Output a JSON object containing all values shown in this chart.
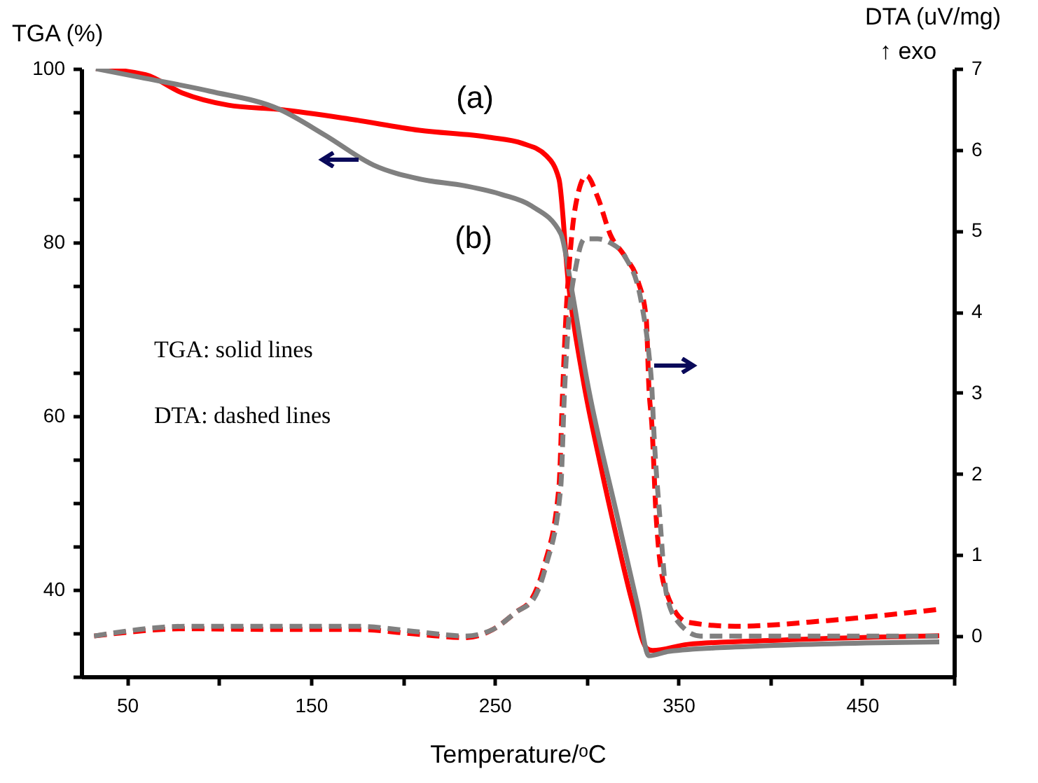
{
  "chart_data": {
    "type": "line",
    "xlabel": "Temperature/ᵒC",
    "ylabel": "TGA (%)",
    "y2label": "DTA (uV/mg)",
    "xlim": [
      25,
      500
    ],
    "xticks": [
      50,
      {
        "value": 100,
        "label": null
      },
      150,
      {
        "value": 200,
        "label": null
      },
      250,
      {
        "value": 300,
        "label": null
      },
      350,
      {
        "value": 400,
        "label": null
      },
      450,
      {
        "value": 500,
        "label": null
      }
    ],
    "ylim": [
      30,
      100
    ],
    "yticks": [
      {
        "value": 30,
        "label": null
      },
      {
        "value": 35,
        "label": null
      },
      40,
      {
        "value": 45,
        "label": null
      },
      {
        "value": 50,
        "label": null
      },
      {
        "value": 55,
        "label": null
      },
      60,
      {
        "value": 65,
        "label": null
      },
      {
        "value": 70,
        "label": null
      },
      {
        "value": 75,
        "label": null
      },
      80,
      {
        "value": 85,
        "label": null
      },
      {
        "value": 90,
        "label": null
      },
      {
        "value": 95,
        "label": null
      },
      100
    ],
    "y2lim": [
      -0.5,
      7
    ],
    "y2ticks": [
      0,
      1,
      2,
      3,
      4,
      5,
      6,
      7
    ],
    "grid": false,
    "annotations": [
      "↑ exo",
      "TGA: solid lines",
      "DTA: dashed lines",
      "(a)",
      "(b)"
    ],
    "series": [
      {
        "color": "#ff0000",
        "line_style": "solid",
        "x": [
          33,
          60,
          80,
          105,
          133,
          171,
          209,
          247,
          265,
          278,
          285,
          290,
          298,
          308,
          317,
          325,
          333,
          336,
          355,
          406,
          492
        ],
        "values": [
          100,
          99.3,
          97.2,
          95.8,
          95.3,
          94.2,
          92.9,
          92.1,
          91.4,
          90,
          87.3,
          75.6,
          64.4,
          54,
          45.5,
          38.5,
          33.2,
          33,
          33.7,
          34.2,
          34.7
        ]
      },
      {
        "color": "#808080",
        "line_style": "solid",
        "x": [
          33,
          57,
          95,
          133,
          158,
          184,
          209,
          234,
          254,
          270,
          286,
          292,
          300,
          317,
          328,
          334,
          345,
          381,
          492
        ],
        "values": [
          100,
          99,
          97.4,
          95.3,
          92.3,
          88.9,
          87.3,
          86.5,
          85.5,
          84.2,
          81,
          74.5,
          64.4,
          48.2,
          38,
          32.4,
          32.9,
          33.4,
          34
        ]
      },
      {
        "color": "#ff0000",
        "line_style": "dashed",
        "axis": "y2",
        "x": [
          32,
          82,
          133,
          175,
          209,
          234,
          249,
          262,
          270,
          277,
          285,
          287,
          288.5,
          292,
          295,
          300,
          306,
          313,
          321,
          328,
          332.5,
          334,
          335.6,
          338,
          343,
          355,
          381,
          431,
          492
        ],
        "values": [
          0,
          0.09,
          0.08,
          0.08,
          0.02,
          -0.02,
          0.08,
          0.3,
          0.45,
          0.87,
          1.84,
          3,
          3.8,
          4.95,
          5.42,
          5.68,
          5.42,
          4.95,
          4.68,
          4.38,
          3.92,
          3.05,
          2.6,
          1.44,
          0.57,
          0.17,
          0.12,
          0.19,
          0.33
        ]
      },
      {
        "color": "#808080",
        "line_style": "dashed",
        "axis": "y2",
        "x": [
          32,
          82,
          133,
          175,
          209,
          234,
          249,
          262,
          271,
          278,
          286,
          288,
          290,
          294.6,
          299,
          306,
          313,
          321,
          330,
          334,
          335.6,
          336.5,
          340,
          343.5,
          350,
          362,
          381,
          492
        ],
        "values": [
          0,
          0.12,
          0.12,
          0.12,
          0.05,
          0,
          0.08,
          0.3,
          0.45,
          0.87,
          1.84,
          3,
          3.8,
          4.6,
          4.9,
          4.9,
          4.85,
          4.68,
          4.1,
          3.47,
          3.05,
          2.6,
          1.44,
          0.52,
          0.17,
          0,
          0,
          0
        ]
      }
    ]
  }
}
